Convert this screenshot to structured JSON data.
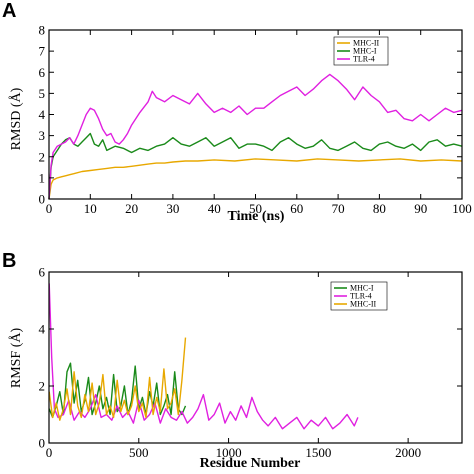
{
  "panels": [
    {
      "letter": "A"
    },
    {
      "letter": "B"
    }
  ],
  "chart_data": [
    {
      "type": "line",
      "title": "",
      "xlabel": "Time (ns)",
      "ylabel": "RMSD (Å)",
      "xlim": [
        0,
        100
      ],
      "ylim": [
        0,
        8
      ],
      "xticks": [
        0,
        10,
        20,
        30,
        40,
        50,
        60,
        70,
        80,
        90,
        100
      ],
      "yticks": [
        0,
        1,
        2,
        3,
        4,
        5,
        6,
        7,
        8
      ],
      "grid": false,
      "legend_position": "top-right",
      "series": [
        {
          "name": "MHC-II",
          "color": "#e8a800",
          "x": [
            0,
            0.5,
            1,
            2,
            3,
            4,
            5,
            6,
            8,
            10,
            12,
            14,
            16,
            18,
            20,
            22,
            24,
            26,
            28,
            30,
            33,
            36,
            40,
            45,
            50,
            55,
            60,
            65,
            70,
            75,
            80,
            85,
            90,
            95,
            100
          ],
          "y": [
            0,
            0.7,
            0.9,
            1.0,
            1.05,
            1.1,
            1.15,
            1.2,
            1.3,
            1.35,
            1.4,
            1.45,
            1.5,
            1.5,
            1.55,
            1.6,
            1.65,
            1.7,
            1.7,
            1.75,
            1.8,
            1.8,
            1.85,
            1.8,
            1.9,
            1.85,
            1.8,
            1.9,
            1.85,
            1.8,
            1.85,
            1.9,
            1.8,
            1.85,
            1.8
          ]
        },
        {
          "name": "MHC-I",
          "color": "#1a8a1a",
          "x": [
            0,
            0.5,
            1,
            2,
            3,
            4,
            5,
            6,
            7,
            8,
            9,
            10,
            11,
            12,
            13,
            14,
            16,
            18,
            20,
            22,
            24,
            26,
            28,
            30,
            32,
            34,
            36,
            38,
            40,
            42,
            44,
            46,
            48,
            50,
            52,
            54,
            56,
            58,
            60,
            62,
            64,
            66,
            68,
            70,
            72,
            74,
            76,
            78,
            80,
            82,
            84,
            86,
            88,
            90,
            92,
            94,
            96,
            98,
            100
          ],
          "y": [
            0,
            1.5,
            2.0,
            2.3,
            2.6,
            2.8,
            2.9,
            2.6,
            2.5,
            2.7,
            2.9,
            3.1,
            2.6,
            2.5,
            2.8,
            2.3,
            2.5,
            2.4,
            2.2,
            2.4,
            2.3,
            2.5,
            2.6,
            2.9,
            2.6,
            2.5,
            2.7,
            2.9,
            2.5,
            2.7,
            2.9,
            2.4,
            2.6,
            2.6,
            2.5,
            2.3,
            2.7,
            2.9,
            2.6,
            2.4,
            2.5,
            2.8,
            2.4,
            2.3,
            2.5,
            2.7,
            2.4,
            2.3,
            2.6,
            2.7,
            2.5,
            2.4,
            2.6,
            2.3,
            2.7,
            2.8,
            2.5,
            2.6,
            2.5
          ]
        },
        {
          "name": "TLR-4",
          "color": "#e020e0",
          "x": [
            0,
            0.5,
            1,
            2,
            3,
            4,
            5,
            6,
            7,
            8,
            9,
            10,
            11,
            12,
            13,
            14,
            15,
            16,
            17,
            18,
            19,
            20,
            22,
            24,
            25,
            26,
            28,
            30,
            32,
            34,
            36,
            38,
            40,
            42,
            44,
            46,
            48,
            50,
            52,
            54,
            56,
            58,
            60,
            62,
            64,
            66,
            68,
            70,
            72,
            74,
            76,
            78,
            80,
            82,
            84,
            86,
            88,
            90,
            92,
            94,
            96,
            98,
            100
          ],
          "y": [
            0,
            1.6,
            2.2,
            2.5,
            2.6,
            2.7,
            2.9,
            2.6,
            3.0,
            3.5,
            4.0,
            4.3,
            4.2,
            3.8,
            3.3,
            3.0,
            3.1,
            2.7,
            2.6,
            2.8,
            3.1,
            3.5,
            4.1,
            4.6,
            5.1,
            4.8,
            4.6,
            4.9,
            4.7,
            4.5,
            5.0,
            4.5,
            4.1,
            4.3,
            4.1,
            4.4,
            4.0,
            4.3,
            4.3,
            4.6,
            4.9,
            5.1,
            5.3,
            4.9,
            5.2,
            5.6,
            5.9,
            5.6,
            5.2,
            4.7,
            5.3,
            4.9,
            4.6,
            4.1,
            4.2,
            3.8,
            3.7,
            4.0,
            3.7,
            4.0,
            4.3,
            4.1,
            4.2
          ]
        }
      ]
    },
    {
      "type": "line",
      "title": "",
      "xlabel": "Residue Number",
      "ylabel": "RMSF (Å)",
      "xlim": [
        0,
        2300
      ],
      "ylim": [
        0,
        6
      ],
      "xticks": [
        0,
        500,
        1000,
        1500,
        2000
      ],
      "yticks": [
        0,
        2,
        4,
        6
      ],
      "grid": false,
      "legend_position": "top-right",
      "series": [
        {
          "name": "MHC-I",
          "color": "#1a8a1a",
          "x": [
            1,
            20,
            40,
            60,
            80,
            100,
            120,
            140,
            160,
            180,
            200,
            220,
            240,
            260,
            280,
            300,
            320,
            340,
            360,
            380,
            400,
            420,
            440,
            460,
            480,
            500,
            520,
            540,
            560,
            580,
            600,
            620,
            640,
            660,
            680,
            700,
            720,
            740,
            760
          ],
          "y": [
            1.2,
            0.9,
            1.3,
            1.8,
            1.0,
            2.5,
            2.8,
            1.4,
            2.2,
            1.1,
            1.5,
            2.3,
            1.0,
            1.4,
            2.0,
            1.2,
            1.6,
            1.0,
            2.4,
            1.1,
            1.3,
            2.0,
            1.0,
            1.5,
            2.7,
            1.2,
            1.6,
            1.0,
            1.8,
            1.3,
            2.1,
            1.0,
            1.3,
            1.7,
            1.0,
            2.5,
            1.2,
            1.0,
            1.3
          ]
        },
        {
          "name": "TLR-4",
          "color": "#e020e0",
          "x": [
            1,
            15,
            30,
            50,
            80,
            110,
            140,
            170,
            200,
            230,
            260,
            290,
            320,
            350,
            380,
            410,
            440,
            470,
            500,
            530,
            560,
            590,
            620,
            650,
            680,
            710,
            740,
            770,
            800,
            830,
            860,
            890,
            920,
            950,
            980,
            1010,
            1040,
            1070,
            1100,
            1130,
            1160,
            1190,
            1220,
            1260,
            1300,
            1340,
            1380,
            1420,
            1460,
            1500,
            1540,
            1580,
            1620,
            1660,
            1700,
            1720
          ],
          "y": [
            5.6,
            3.0,
            1.2,
            0.9,
            1.0,
            1.5,
            0.8,
            1.1,
            0.9,
            1.2,
            1.7,
            0.9,
            1.0,
            0.8,
            1.3,
            0.9,
            1.1,
            0.7,
            1.5,
            0.8,
            1.0,
            1.4,
            0.7,
            1.2,
            0.9,
            0.8,
            1.1,
            0.7,
            0.9,
            1.2,
            1.7,
            0.8,
            1.0,
            1.4,
            0.7,
            1.1,
            0.8,
            1.3,
            0.9,
            1.6,
            1.1,
            0.8,
            0.6,
            0.9,
            0.5,
            0.7,
            0.9,
            0.5,
            0.8,
            0.6,
            0.9,
            0.5,
            0.7,
            1.0,
            0.6,
            0.9
          ]
        },
        {
          "name": "MHC-II",
          "color": "#e8a800",
          "x": [
            1,
            20,
            40,
            60,
            80,
            100,
            120,
            140,
            160,
            180,
            200,
            220,
            240,
            260,
            280,
            300,
            320,
            340,
            360,
            380,
            400,
            420,
            440,
            460,
            480,
            500,
            520,
            540,
            560,
            580,
            600,
            620,
            640,
            660,
            680,
            700,
            720,
            740,
            760
          ],
          "y": [
            1.8,
            0.9,
            1.4,
            0.8,
            1.2,
            1.9,
            1.0,
            2.5,
            1.3,
            0.9,
            1.7,
            1.1,
            2.1,
            1.0,
            1.4,
            2.4,
            1.0,
            1.3,
            0.9,
            2.2,
            1.1,
            1.5,
            1.0,
            1.3,
            2.0,
            1.1,
            1.4,
            0.9,
            2.3,
            1.0,
            1.6,
            1.1,
            2.6,
            1.2,
            1.4,
            1.9,
            1.0,
            2.2,
            3.7
          ]
        }
      ]
    }
  ]
}
